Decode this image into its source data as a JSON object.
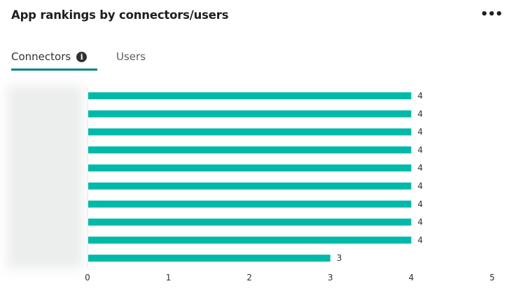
{
  "header": {
    "title": "App rankings by connectors/users",
    "more_icon": "ellipsis-icon",
    "more_label": "•••"
  },
  "tabs": [
    {
      "label": "Connectors",
      "active": true,
      "icon": "info-icon"
    },
    {
      "label": "Users",
      "active": false
    }
  ],
  "chart_data": {
    "type": "bar",
    "orientation": "horizontal",
    "category_labels_obscured": true,
    "values": [
      4,
      4,
      4,
      4,
      4,
      4,
      4,
      4,
      4,
      3
    ],
    "xlim": [
      0,
      5
    ],
    "xticks": [
      "0",
      "1",
      "2",
      "3",
      "4",
      "5"
    ],
    "data_labels": true,
    "grid": false,
    "color": "#00b9a9"
  }
}
